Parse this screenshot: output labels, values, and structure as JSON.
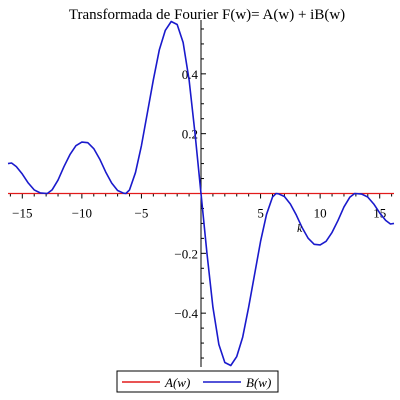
{
  "chart_data": {
    "type": "line",
    "title": "Transformada de Fourier F(w)= A(w) + iB(w)",
    "xlabel": "k",
    "ylabel": "",
    "xlim": [
      -16.2,
      16.2
    ],
    "ylim": [
      -0.58,
      0.58
    ],
    "x_ticks": [
      -15,
      -10,
      -5,
      5,
      10,
      15
    ],
    "x_tick_labels": [
      "−15",
      "−10",
      "−5",
      "5",
      "10",
      "15"
    ],
    "y_ticks": [
      -0.4,
      -0.2,
      0.2,
      0.4
    ],
    "y_tick_labels": [
      "−0.4",
      "−0.2",
      "0.2",
      "0.4"
    ],
    "grid": false,
    "legend_position": "bottom",
    "series": [
      {
        "name": "A(w)",
        "color": "#e21b1b",
        "points": [
          [
            -16.2,
            0.0
          ],
          [
            16.2,
            0.0
          ]
        ]
      },
      {
        "name": "B(w)",
        "color": "#1a1acc",
        "points": [
          [
            -16.2,
            0.1
          ],
          [
            -15.9,
            0.102
          ],
          [
            -15.5,
            0.09
          ],
          [
            -15.0,
            0.065
          ],
          [
            -14.5,
            0.035
          ],
          [
            -14.0,
            0.012
          ],
          [
            -13.5,
            0.002
          ],
          [
            -12.9,
            0.0
          ],
          [
            -12.5,
            0.012
          ],
          [
            -12.0,
            0.045
          ],
          [
            -11.5,
            0.09
          ],
          [
            -11.0,
            0.13
          ],
          [
            -10.5,
            0.16
          ],
          [
            -10.0,
            0.172
          ],
          [
            -9.5,
            0.17
          ],
          [
            -9.0,
            0.15
          ],
          [
            -8.5,
            0.115
          ],
          [
            -8.0,
            0.072
          ],
          [
            -7.5,
            0.035
          ],
          [
            -7.0,
            0.01
          ],
          [
            -6.5,
            0.001
          ],
          [
            -6.3,
            0.0
          ],
          [
            -6.0,
            0.012
          ],
          [
            -5.5,
            0.07
          ],
          [
            -5.0,
            0.16
          ],
          [
            -4.5,
            0.27
          ],
          [
            -4.0,
            0.38
          ],
          [
            -3.5,
            0.48
          ],
          [
            -3.0,
            0.545
          ],
          [
            -2.5,
            0.575
          ],
          [
            -2.0,
            0.565
          ],
          [
            -1.5,
            0.505
          ],
          [
            -1.0,
            0.38
          ],
          [
            -0.5,
            0.2
          ],
          [
            0.0,
            0.0
          ],
          [
            0.5,
            -0.2
          ],
          [
            1.0,
            -0.38
          ],
          [
            1.5,
            -0.505
          ],
          [
            2.0,
            -0.565
          ],
          [
            2.5,
            -0.575
          ],
          [
            3.0,
            -0.545
          ],
          [
            3.5,
            -0.48
          ],
          [
            4.0,
            -0.38
          ],
          [
            4.5,
            -0.27
          ],
          [
            5.0,
            -0.16
          ],
          [
            5.5,
            -0.07
          ],
          [
            6.0,
            -0.012
          ],
          [
            6.3,
            0.0
          ],
          [
            6.5,
            -0.001
          ],
          [
            7.0,
            -0.01
          ],
          [
            7.5,
            -0.035
          ],
          [
            8.0,
            -0.072
          ],
          [
            8.5,
            -0.115
          ],
          [
            9.0,
            -0.15
          ],
          [
            9.5,
            -0.17
          ],
          [
            10.0,
            -0.172
          ],
          [
            10.5,
            -0.16
          ],
          [
            11.0,
            -0.13
          ],
          [
            11.5,
            -0.09
          ],
          [
            12.0,
            -0.045
          ],
          [
            12.5,
            -0.012
          ],
          [
            12.9,
            0.0
          ],
          [
            13.5,
            -0.002
          ],
          [
            14.0,
            -0.012
          ],
          [
            14.5,
            -0.035
          ],
          [
            15.0,
            -0.065
          ],
          [
            15.5,
            -0.09
          ],
          [
            15.9,
            -0.102
          ],
          [
            16.2,
            -0.1
          ]
        ]
      }
    ]
  }
}
